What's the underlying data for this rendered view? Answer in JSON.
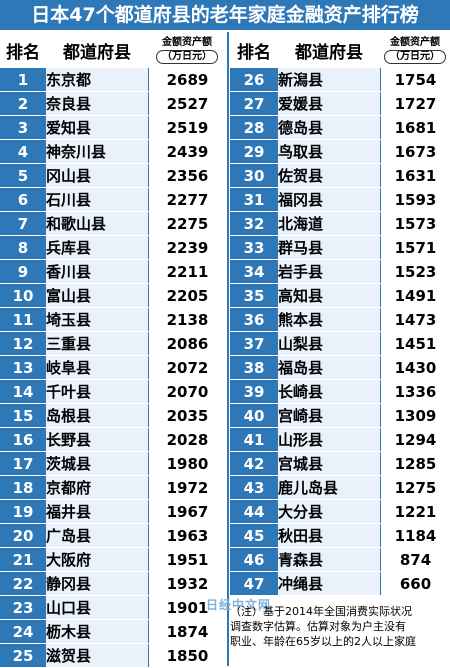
{
  "title": "日本47个都道府县的老年家庭金融资产排行榜",
  "header": {
    "rank": "排名",
    "prefecture": "都道府县",
    "amount_label": "金额资产额",
    "amount_unit": "（万日元）"
  },
  "watermark": "日经中文网",
  "note": {
    "line1": "（注）基于2014年全国消费实际状况",
    "line2": "调查数字估算。估算对象为户主没有",
    "line3": "职业、年龄在65岁以上的2人以上家庭"
  },
  "colors": {
    "accent": "#2f78b8",
    "cell_bg": "#e9f2fb"
  },
  "chart_data": {
    "type": "table",
    "title": "日本47个都道府县的老年家庭金融资产排行榜",
    "columns": [
      "排名",
      "都道府县",
      "金额资产额（万日元）"
    ],
    "rows": [
      {
        "rank": "1",
        "prefecture": "东京都",
        "amount": "2689"
      },
      {
        "rank": "2",
        "prefecture": "奈良县",
        "amount": "2527"
      },
      {
        "rank": "3",
        "prefecture": "爱知县",
        "amount": "2519"
      },
      {
        "rank": "4",
        "prefecture": "神奈川县",
        "amount": "2439"
      },
      {
        "rank": "5",
        "prefecture": "冈山县",
        "amount": "2356"
      },
      {
        "rank": "6",
        "prefecture": "石川县",
        "amount": "2277"
      },
      {
        "rank": "7",
        "prefecture": "和歌山县",
        "amount": "2275"
      },
      {
        "rank": "8",
        "prefecture": "兵库县",
        "amount": "2239"
      },
      {
        "rank": "9",
        "prefecture": "香川县",
        "amount": "2211"
      },
      {
        "rank": "10",
        "prefecture": "富山县",
        "amount": "2205"
      },
      {
        "rank": "11",
        "prefecture": "埼玉县",
        "amount": "2138"
      },
      {
        "rank": "12",
        "prefecture": "三重县",
        "amount": "2086"
      },
      {
        "rank": "13",
        "prefecture": "岐阜县",
        "amount": "2072"
      },
      {
        "rank": "14",
        "prefecture": "千叶县",
        "amount": "2070"
      },
      {
        "rank": "15",
        "prefecture": "岛根县",
        "amount": "2035"
      },
      {
        "rank": "16",
        "prefecture": "长野县",
        "amount": "2028"
      },
      {
        "rank": "17",
        "prefecture": "茨城县",
        "amount": "1980"
      },
      {
        "rank": "18",
        "prefecture": "京都府",
        "amount": "1972"
      },
      {
        "rank": "19",
        "prefecture": "福井县",
        "amount": "1967"
      },
      {
        "rank": "20",
        "prefecture": "广岛县",
        "amount": "1963"
      },
      {
        "rank": "21",
        "prefecture": "大阪府",
        "amount": "1951"
      },
      {
        "rank": "22",
        "prefecture": "静冈县",
        "amount": "1932"
      },
      {
        "rank": "23",
        "prefecture": "山口县",
        "amount": "1901"
      },
      {
        "rank": "24",
        "prefecture": "枥木县",
        "amount": "1874"
      },
      {
        "rank": "25",
        "prefecture": "滋贺县",
        "amount": "1850"
      },
      {
        "rank": "26",
        "prefecture": "新潟县",
        "amount": "1754"
      },
      {
        "rank": "27",
        "prefecture": "爱媛县",
        "amount": "1727"
      },
      {
        "rank": "28",
        "prefecture": "德岛县",
        "amount": "1681"
      },
      {
        "rank": "29",
        "prefecture": "鸟取县",
        "amount": "1673"
      },
      {
        "rank": "30",
        "prefecture": "佐贺县",
        "amount": "1631"
      },
      {
        "rank": "31",
        "prefecture": "福冈县",
        "amount": "1593"
      },
      {
        "rank": "32",
        "prefecture": "北海道",
        "amount": "1573"
      },
      {
        "rank": "33",
        "prefecture": "群马县",
        "amount": "1571"
      },
      {
        "rank": "34",
        "prefecture": "岩手县",
        "amount": "1523"
      },
      {
        "rank": "35",
        "prefecture": "高知县",
        "amount": "1491"
      },
      {
        "rank": "36",
        "prefecture": "熊本县",
        "amount": "1473"
      },
      {
        "rank": "37",
        "prefecture": "山梨县",
        "amount": "1451"
      },
      {
        "rank": "38",
        "prefecture": "福岛县",
        "amount": "1430"
      },
      {
        "rank": "39",
        "prefecture": "长崎县",
        "amount": "1336"
      },
      {
        "rank": "40",
        "prefecture": "宫崎县",
        "amount": "1309"
      },
      {
        "rank": "41",
        "prefecture": "山形县",
        "amount": "1294"
      },
      {
        "rank": "42",
        "prefecture": "宫城县",
        "amount": "1285"
      },
      {
        "rank": "43",
        "prefecture": "鹿儿岛县",
        "amount": "1275"
      },
      {
        "rank": "44",
        "prefecture": "大分县",
        "amount": "1221"
      },
      {
        "rank": "45",
        "prefecture": "秋田县",
        "amount": "1184"
      },
      {
        "rank": "46",
        "prefecture": "青森县",
        "amount": "874"
      },
      {
        "rank": "47",
        "prefecture": "冲绳县",
        "amount": "660"
      }
    ]
  }
}
